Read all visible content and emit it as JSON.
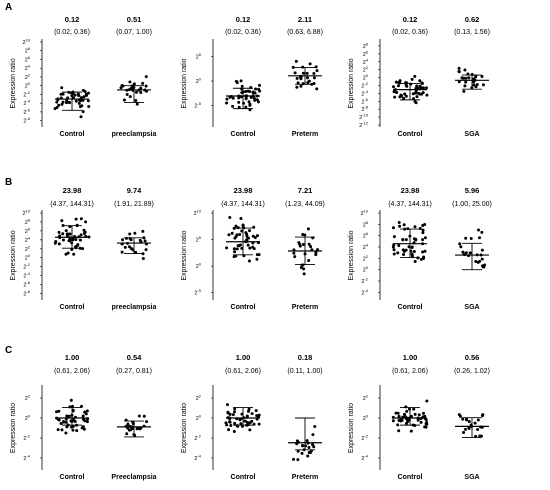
{
  "panels": [
    {
      "letter": "A"
    },
    {
      "letter": "B"
    },
    {
      "letter": "C"
    }
  ],
  "chart_data": [
    {
      "type": "scatter",
      "panel": "A",
      "ylabel": "Expression ratio",
      "ylog2": true,
      "yticks": [
        "2^10",
        "2^8",
        "2^6",
        "2^4",
        "2^2",
        "2^0",
        "2^-2",
        "2^-4",
        "2^-6",
        "2^-8"
      ],
      "ylim_exp": [
        -9,
        10
      ],
      "groups": [
        {
          "name": "Control",
          "median": "0.12",
          "ci": "(0.02, 0.36)"
        },
        {
          "name": "preeclampsia",
          "median": "0.51",
          "ci": "(0.07, 1.00)"
        }
      ]
    },
    {
      "type": "scatter",
      "panel": "A",
      "ylabel": "Expression ratio",
      "ylog2": true,
      "yticks": [
        "2^5",
        "2^0",
        "2^-5"
      ],
      "ylim_exp": [
        -9,
        8
      ],
      "groups": [
        {
          "name": "Control",
          "median": "0.12",
          "ci": "(0.02, 0.36)"
        },
        {
          "name": "Preterm",
          "median": "2.11",
          "ci": "(0.63, 6.88)"
        }
      ]
    },
    {
      "type": "scatter",
      "panel": "A",
      "ylabel": "Expression ratio",
      "ylog2": true,
      "yticks": [
        "2^8",
        "2^6",
        "2^4",
        "2^2",
        "2^0",
        "2^-2",
        "2^-4",
        "2^-6",
        "2^-8",
        "2^-10",
        "2^-12"
      ],
      "ylim_exp": [
        -12,
        9
      ],
      "groups": [
        {
          "name": "Control",
          "median": "0.12",
          "ci": "(0.02, 0.36)"
        },
        {
          "name": "SGA",
          "median": "0.62",
          "ci": "(0.13, 1.56)"
        }
      ]
    },
    {
      "type": "scatter",
      "panel": "B",
      "ylabel": "Expression ratio",
      "ylog2": true,
      "yticks": [
        "2^10",
        "2^8",
        "2^6",
        "2^4",
        "2^2",
        "2^0",
        "2^-2",
        "2^-4",
        "2^-6",
        "2^-8"
      ],
      "ylim_exp": [
        -9,
        10
      ],
      "groups": [
        {
          "name": "Control",
          "median": "23.98",
          "ci": "(4.37, 144.31)"
        },
        {
          "name": "preeclampsia",
          "median": "9.74",
          "ci": "(1.91, 21.89)"
        }
      ]
    },
    {
      "type": "scatter",
      "panel": "B",
      "ylabel": "Expression ratio",
      "ylog2": true,
      "yticks": [
        "2^10",
        "2^5",
        "2^0",
        "2^-5"
      ],
      "ylim_exp": [
        -6,
        10
      ],
      "groups": [
        {
          "name": "Control",
          "median": "23.98",
          "ci": "(4.37, 144.31)"
        },
        {
          "name": "Preterm",
          "median": "7.21",
          "ci": "(1.23, 44.09)"
        }
      ]
    },
    {
      "type": "scatter",
      "panel": "B",
      "ylabel": "Expression ratio",
      "ylog2": true,
      "yticks": [
        "2^10",
        "2^8",
        "2^6",
        "2^4",
        "2^2",
        "2^0",
        "2^-2",
        "2^-4"
      ],
      "ylim_exp": [
        -5,
        10
      ],
      "groups": [
        {
          "name": "Control",
          "median": "23.98",
          "ci": "(4.37, 144.31)"
        },
        {
          "name": "SGA",
          "median": "5.96",
          "ci": "(1.00, 25.00)"
        }
      ]
    },
    {
      "type": "scatter",
      "panel": "C",
      "ylabel": "Expression ratio",
      "ylog2": true,
      "yticks": [
        "2^2",
        "2^0",
        "2^-2",
        "2^-4"
      ],
      "ylim_exp": [
        -5,
        3
      ],
      "groups": [
        {
          "name": "Control",
          "median": "1.00",
          "ci": "(0.61, 2.06)"
        },
        {
          "name": "Preeclampsia",
          "median": "0.54",
          "ci": "(0.27, 0.81)"
        }
      ]
    },
    {
      "type": "scatter",
      "panel": "C",
      "ylabel": "Expression ratio",
      "ylog2": true,
      "yticks": [
        "2^2",
        "2^0",
        "2^-2",
        "2^-4"
      ],
      "ylim_exp": [
        -5,
        3
      ],
      "groups": [
        {
          "name": "Control",
          "median": "1.00",
          "ci": "(0.61, 2.06)"
        },
        {
          "name": "Preterm",
          "median": "0.18",
          "ci": "(0.11, 1.00)"
        }
      ]
    },
    {
      "type": "scatter",
      "panel": "C",
      "ylabel": "Expression ratio",
      "ylog2": true,
      "yticks": [
        "2^2",
        "2^0",
        "2^-2",
        "2^-4"
      ],
      "ylim_exp": [
        -5,
        3
      ],
      "groups": [
        {
          "name": "Control",
          "median": "1.00",
          "ci": "(0.61, 2.06)"
        },
        {
          "name": "SGA",
          "median": "0.56",
          "ci": "(0.26, 1.02)"
        }
      ]
    }
  ]
}
